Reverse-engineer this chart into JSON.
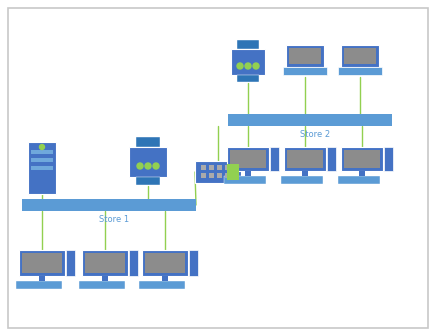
{
  "bg_color": "#ffffff",
  "border_color": "#c8c8c8",
  "blue": "#4472C4",
  "light_blue": "#5B9BD5",
  "steel_blue": "#2E75B6",
  "green_line": "#92D050",
  "gray": "#8C8C8C",
  "switch_green": "#92D050",
  "store1_label": "Store 1",
  "store2_label": "Store 2",
  "line_color": "#92D050",
  "line_width": 1.0
}
